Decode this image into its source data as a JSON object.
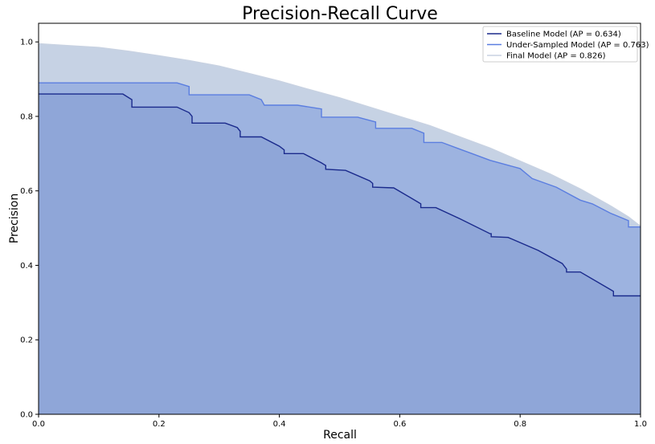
{
  "chart_data": {
    "type": "area",
    "title": "Precision-Recall Curve",
    "xlabel": "Recall",
    "ylabel": "Precision",
    "xlim": [
      0,
      1
    ],
    "ylim": [
      0,
      1.05
    ],
    "xticks": [
      "0.0",
      "0.2",
      "0.4",
      "0.6",
      "0.8",
      "1.0"
    ],
    "yticks": [
      "0.0",
      "0.2",
      "0.4",
      "0.6",
      "0.8",
      "1.0"
    ],
    "grid": false,
    "legend_position": "top-right",
    "series": [
      {
        "name": "Final Model (AP = 0.826)",
        "line_color": "#c8d2e2",
        "fill_color": "#c6d2e4",
        "x": [
          0.0,
          0.05,
          0.1,
          0.15,
          0.2,
          0.25,
          0.3,
          0.35,
          0.4,
          0.45,
          0.5,
          0.55,
          0.6,
          0.65,
          0.7,
          0.75,
          0.8,
          0.85,
          0.9,
          0.95,
          0.98,
          1.0
        ],
        "y": [
          0.995,
          0.99,
          0.985,
          0.975,
          0.963,
          0.95,
          0.935,
          0.915,
          0.895,
          0.872,
          0.85,
          0.825,
          0.8,
          0.775,
          0.745,
          0.715,
          0.68,
          0.645,
          0.605,
          0.56,
          0.53,
          0.505
        ]
      },
      {
        "name": "Under-Sampled Model (AP = 0.763)",
        "line_color": "#5b7ee0",
        "fill_color": "#9db3e0",
        "x": [
          0.0,
          0.23,
          0.25,
          0.25,
          0.35,
          0.37,
          0.375,
          0.43,
          0.47,
          0.47,
          0.53,
          0.56,
          0.56,
          0.62,
          0.64,
          0.64,
          0.67,
          0.7,
          0.72,
          0.75,
          0.8,
          0.82,
          0.86,
          0.9,
          0.92,
          0.95,
          0.98,
          0.98,
          1.0
        ],
        "y": [
          0.89,
          0.89,
          0.88,
          0.858,
          0.858,
          0.845,
          0.83,
          0.83,
          0.82,
          0.798,
          0.798,
          0.785,
          0.768,
          0.768,
          0.755,
          0.73,
          0.73,
          0.712,
          0.7,
          0.682,
          0.66,
          0.633,
          0.61,
          0.575,
          0.565,
          0.54,
          0.52,
          0.503,
          0.503
        ]
      },
      {
        "name": "Baseline Model (AP = 0.634)",
        "line_color": "#1a2a8c",
        "fill_color": "#8fa6d8",
        "x": [
          0.0,
          0.14,
          0.155,
          0.155,
          0.23,
          0.25,
          0.255,
          0.255,
          0.31,
          0.33,
          0.335,
          0.335,
          0.37,
          0.4,
          0.408,
          0.408,
          0.44,
          0.47,
          0.477,
          0.477,
          0.51,
          0.55,
          0.555,
          0.555,
          0.59,
          0.63,
          0.635,
          0.635,
          0.66,
          0.7,
          0.75,
          0.752,
          0.752,
          0.78,
          0.83,
          0.87,
          0.877,
          0.877,
          0.9,
          0.95,
          0.955,
          0.955,
          1.0
        ],
        "y": [
          0.86,
          0.86,
          0.845,
          0.825,
          0.825,
          0.81,
          0.8,
          0.782,
          0.782,
          0.77,
          0.76,
          0.745,
          0.745,
          0.72,
          0.71,
          0.7,
          0.7,
          0.675,
          0.668,
          0.658,
          0.655,
          0.627,
          0.62,
          0.61,
          0.608,
          0.57,
          0.565,
          0.555,
          0.555,
          0.525,
          0.485,
          0.485,
          0.477,
          0.475,
          0.44,
          0.405,
          0.39,
          0.382,
          0.382,
          0.335,
          0.33,
          0.318,
          0.318
        ]
      }
    ]
  }
}
